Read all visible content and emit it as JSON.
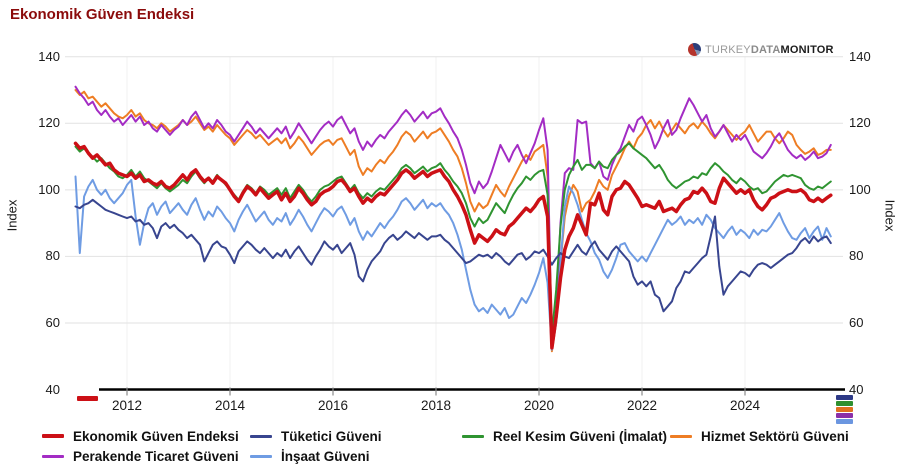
{
  "title": "Ekonomik Güven Endeksi",
  "logo": {
    "part1": "TURKEY",
    "part2": "DATA",
    "part3": "MONITOR"
  },
  "axes": {
    "y_label_left": "Index",
    "y_label_right": "Index",
    "y_ticks": [
      140,
      120,
      100,
      80,
      60,
      40
    ],
    "x_ticks": [
      "2012",
      "2014",
      "2016",
      "2018",
      "2020",
      "2022",
      "2024"
    ],
    "ylim": [
      40,
      140
    ]
  },
  "markers": {
    "bottom_left_color": "#cc1016",
    "bottom_right_colors": [
      "#2e3a87",
      "#2f8f2f",
      "#e07020",
      "#8b2fa8",
      "#6b96e0"
    ]
  },
  "chart_data": {
    "type": "line",
    "title": "Ekonomik Güven Endeksi",
    "ylabel": "Index",
    "ylim": [
      40,
      140
    ],
    "x_start": "2011-01",
    "x_end": "2025-09",
    "frequency": "monthly",
    "grid": true,
    "legend_position": "bottom",
    "series": [
      {
        "name": "Ekonomik Güven Endeksi",
        "color": "#cc1016",
        "width": 3.5,
        "values": [
          114,
          112.5,
          113,
          111,
          109.5,
          110.5,
          109,
          107.5,
          108,
          106,
          105,
          104.5,
          104,
          105,
          103.5,
          104.5,
          102.5,
          103,
          102,
          101.5,
          102.5,
          101,
          100.5,
          101.5,
          103,
          104.5,
          103,
          105,
          106,
          104,
          102.5,
          103.5,
          102,
          104,
          103,
          102,
          100,
          98,
          96.5,
          99,
          101,
          100,
          98.5,
          100.5,
          99,
          97.5,
          98.5,
          99.5,
          97,
          99,
          96.5,
          98,
          100.5,
          99,
          97,
          95.5,
          96.5,
          98.5,
          99.5,
          100,
          101,
          102.5,
          103,
          101.5,
          99.5,
          100.5,
          98,
          96,
          97.5,
          96.5,
          98,
          99,
          98.5,
          100,
          101.5,
          103,
          105,
          106,
          105,
          103.5,
          104.5,
          105.5,
          104,
          105,
          105.5,
          106,
          104,
          102.5,
          100,
          98,
          95.5,
          92.5,
          88,
          84,
          86.5,
          85.5,
          84.5,
          86,
          88,
          87,
          86.5,
          89,
          90,
          91.5,
          93,
          94.5,
          93.5,
          95,
          97,
          98,
          92,
          52.5,
          62,
          73.5,
          82,
          86,
          88.5,
          92.5,
          89.5,
          86.5,
          96,
          95.5,
          99,
          94,
          92.5,
          98,
          100,
          100.5,
          102.5,
          101.5,
          99.5,
          97.5,
          95,
          95.5,
          95,
          94.5,
          96.5,
          93.5,
          94,
          94.5,
          93.5,
          95.5,
          97,
          97.5,
          99.5,
          99,
          100.5,
          99,
          96.5,
          96,
          100.5,
          103.5,
          102,
          100.5,
          99,
          100,
          99,
          100,
          97,
          95,
          94,
          95.5,
          97.5,
          98,
          99,
          99.5,
          100,
          99.5,
          99.5,
          100,
          99,
          97,
          96.5,
          97.5,
          96.5,
          97.5,
          98.4
        ]
      },
      {
        "name": "Tüketici Güveni",
        "color": "#38458f",
        "width": 2,
        "values": [
          95,
          94.5,
          95.5,
          96,
          97,
          96,
          95,
          94,
          93.5,
          93,
          92.5,
          92,
          91.5,
          92,
          90.5,
          91,
          89.5,
          90,
          88.5,
          85.5,
          89,
          90,
          88.5,
          89.5,
          88,
          87,
          85.5,
          86.5,
          85,
          83.5,
          78.5,
          81,
          83.5,
          84.5,
          83,
          82.5,
          80.5,
          78,
          81.5,
          83,
          84.5,
          83.5,
          82,
          81,
          82.5,
          81,
          79.5,
          81,
          80,
          82,
          79.5,
          81.5,
          83,
          81,
          79,
          77.5,
          80,
          82,
          84.5,
          83,
          82,
          83.5,
          81,
          82.5,
          84,
          80.5,
          74,
          72.5,
          76,
          78.5,
          80,
          81.5,
          84,
          85.5,
          86.5,
          85,
          86,
          87.5,
          86.5,
          85.5,
          87,
          86,
          85,
          86,
          86,
          86.5,
          85,
          84,
          82.5,
          81,
          79.5,
          78,
          78.5,
          79.5,
          80.5,
          80,
          80.5,
          79.5,
          81,
          80,
          78.5,
          77.5,
          79,
          80.5,
          81,
          79,
          80,
          81.5,
          81,
          82,
          80,
          77.5,
          79.5,
          81,
          80,
          79.5,
          81.5,
          83.5,
          81.5,
          80.5,
          83,
          84.5,
          82,
          80.5,
          79,
          81.5,
          83,
          81.5,
          80,
          78.5,
          74,
          71.5,
          72.5,
          71,
          72.5,
          68.5,
          67.5,
          63.5,
          65,
          66.5,
          70.5,
          72.5,
          75.5,
          75,
          76.5,
          78,
          79.5,
          80.5,
          86,
          92,
          77,
          68.5,
          71,
          72.5,
          74,
          75.5,
          75,
          74,
          76,
          77.5,
          78,
          77.5,
          76.5,
          77.5,
          78.5,
          79.5,
          80.5,
          81,
          82.5,
          84.5,
          85.5,
          84,
          86,
          84.5,
          85.5,
          86,
          84
        ]
      },
      {
        "name": "Reel Kesim Güveni (İmalat)",
        "color": "#2f9431",
        "width": 2,
        "values": [
          113,
          111.5,
          112.5,
          111,
          110,
          108.5,
          109.5,
          108,
          106.5,
          105.5,
          104,
          103.5,
          104.5,
          106,
          104,
          105.5,
          103.5,
          102.5,
          101.5,
          100.5,
          102,
          100.5,
          99.5,
          100.5,
          101.5,
          103,
          102,
          104,
          105.5,
          103.5,
          102,
          103.5,
          102.5,
          104.5,
          103,
          101.5,
          100,
          98.5,
          97,
          99.5,
          101.5,
          100.5,
          99,
          101,
          100,
          98.5,
          99.5,
          100.5,
          98.5,
          100.5,
          97.5,
          99.5,
          101.5,
          100,
          98,
          96.5,
          98,
          100,
          101,
          101.5,
          102.5,
          103.5,
          104,
          102,
          100,
          101.5,
          99,
          97.5,
          99,
          98,
          99.5,
          100.5,
          100,
          101.5,
          103,
          104.5,
          106.5,
          107.5,
          106.5,
          105,
          106,
          107,
          105.5,
          106.5,
          107,
          108,
          106,
          104.5,
          102.5,
          101,
          99,
          96,
          91.5,
          89,
          91.5,
          90,
          91,
          93.5,
          96,
          94.5,
          93,
          96,
          98.5,
          100.5,
          102,
          104,
          103,
          104.5,
          105.5,
          106,
          98.5,
          56.5,
          70,
          89,
          100,
          104.5,
          107,
          109,
          106,
          107.5,
          107.5,
          106.5,
          108.5,
          107,
          106.5,
          109,
          110.5,
          111.5,
          113,
          114,
          112.5,
          111.5,
          110.5,
          109.5,
          108,
          106.5,
          107.5,
          105.5,
          103,
          101.5,
          100.5,
          101.5,
          102.5,
          103,
          104,
          103.5,
          105,
          104.5,
          106.5,
          108,
          107,
          105.5,
          104.5,
          103,
          102,
          103.5,
          102.5,
          101,
          100,
          100.5,
          99,
          99.5,
          101,
          102.5,
          103.5,
          104.5,
          104,
          104.5,
          104,
          103.5,
          101.5,
          100.5,
          100,
          101,
          100.5,
          101.5,
          102.5
        ]
      },
      {
        "name": "Hizmet Sektörü Güveni",
        "color": "#ee7d24",
        "width": 2,
        "values": [
          130,
          128.5,
          129.5,
          127.5,
          128,
          126.5,
          125,
          126,
          124.5,
          123,
          122,
          121.5,
          122.5,
          124,
          122,
          123,
          121,
          120,
          119.5,
          118.5,
          120,
          119,
          117.5,
          118.5,
          119.5,
          121,
          119.5,
          120.5,
          122,
          120,
          118,
          119,
          117.5,
          119.5,
          118,
          116.5,
          115.5,
          113.5,
          115,
          116.5,
          118,
          117,
          115.5,
          116.5,
          115,
          113.5,
          114.5,
          115.5,
          114,
          115.5,
          112.5,
          114,
          116,
          114.5,
          112.5,
          110.5,
          112,
          113.5,
          114.5,
          115,
          113.5,
          115,
          115.5,
          113,
          110.5,
          112,
          107,
          104.5,
          106.5,
          105.5,
          107.5,
          109,
          108,
          110,
          111.5,
          113.5,
          116,
          117.5,
          116.5,
          114.5,
          116,
          117.5,
          115.5,
          117,
          117.5,
          118.5,
          116.5,
          114.5,
          112,
          110,
          106.5,
          102,
          96.5,
          93.5,
          96,
          94.5,
          95.5,
          98.5,
          101.5,
          99.5,
          98,
          101,
          103.5,
          106,
          108.5,
          110.5,
          109,
          111.5,
          112.5,
          113.5,
          104,
          51.5,
          60,
          78,
          92,
          98,
          101.5,
          99.5,
          93.5,
          96,
          97,
          99.5,
          103,
          101,
          100,
          104.5,
          107,
          109.5,
          112.5,
          114.5,
          112.5,
          115.5,
          117,
          119.5,
          121,
          118.5,
          120.5,
          118,
          116,
          118,
          120,
          118.5,
          117,
          119,
          120,
          118.5,
          120.5,
          119,
          117,
          115.5,
          117.5,
          119.5,
          118,
          116.5,
          115,
          116.5,
          117.5,
          119.5,
          117,
          114.5,
          116,
          117.5,
          117.5,
          115.5,
          114,
          115.5,
          117.5,
          116.5,
          113.5,
          112,
          110.8,
          111.5,
          112.5,
          110.5,
          111,
          112,
          112
        ]
      },
      {
        "name": "Perakende Ticaret Güveni",
        "color": "#a32cc4",
        "width": 2,
        "values": [
          131,
          129,
          127.5,
          125.5,
          126.5,
          124,
          122.5,
          124,
          122,
          120.5,
          121.5,
          119.5,
          121,
          122.5,
          120.5,
          122,
          119.5,
          120.5,
          118.5,
          117.5,
          119.5,
          118,
          116.5,
          118,
          119,
          121,
          119.5,
          122,
          123.5,
          121,
          118.5,
          120,
          118.5,
          121,
          119.5,
          117.5,
          116.5,
          114.5,
          116.5,
          118.5,
          120.5,
          119,
          117,
          118.5,
          117,
          115.5,
          117,
          118.5,
          117,
          119,
          115.5,
          117.5,
          120,
          118,
          116,
          114,
          116,
          118,
          119.5,
          120.5,
          119,
          121,
          122,
          119.5,
          117,
          118.5,
          114.5,
          112,
          114.5,
          113,
          115,
          116.5,
          115.5,
          117.5,
          119,
          120.5,
          122.5,
          124,
          122.5,
          120.5,
          122,
          123.5,
          121.5,
          123,
          123.5,
          124.5,
          122,
          120,
          117.5,
          115.5,
          112,
          107.5,
          102,
          99,
          102.5,
          100.5,
          102,
          105.5,
          109.5,
          113.5,
          111,
          108.5,
          111.5,
          113.5,
          110.5,
          108,
          111,
          114,
          118,
          121.5,
          112,
          52.5,
          63,
          90,
          105,
          106.5,
          106,
          121,
          120,
          120.5,
          108,
          106.5,
          108.5,
          104,
          103,
          107.5,
          110.5,
          112.5,
          116,
          119.5,
          117.5,
          121,
          122,
          119.5,
          116.5,
          112.5,
          115,
          118.5,
          121,
          116.5,
          118,
          121.5,
          124.5,
          127.5,
          125.5,
          123,
          120.5,
          122.5,
          118.5,
          116,
          117.5,
          119.5,
          117,
          114.5,
          116.5,
          115,
          116.5,
          114,
          111.5,
          110.5,
          109.5,
          111,
          113,
          115.5,
          117,
          114.5,
          112,
          110.5,
          109.5,
          110.5,
          109,
          110,
          111.5,
          109.5,
          110,
          111,
          113.5
        ]
      },
      {
        "name": "İnşaat Güveni",
        "color": "#6f9ce3",
        "width": 2,
        "values": [
          104,
          81,
          98,
          101,
          103,
          100,
          98.5,
          100,
          97.5,
          96,
          97.5,
          99,
          101.5,
          103,
          92,
          83.5,
          90,
          94.5,
          96,
          92.5,
          95,
          96.5,
          93,
          94.5,
          96,
          94,
          92.5,
          95.5,
          97.5,
          94,
          91,
          93.5,
          92,
          95,
          93.5,
          91.5,
          90,
          87.5,
          91,
          93.5,
          95.5,
          93,
          90.5,
          92,
          93.5,
          91,
          89.5,
          91.5,
          90.5,
          93,
          89.5,
          91.5,
          94,
          92,
          89.5,
          87.5,
          90,
          92.5,
          94.5,
          93.5,
          92,
          94,
          95,
          92.5,
          89.5,
          91.5,
          87.5,
          85,
          87.5,
          86,
          88,
          90,
          88.5,
          90.5,
          92,
          94,
          96.5,
          97.5,
          96,
          94,
          95.5,
          97,
          94.5,
          96,
          95,
          96,
          94,
          92.5,
          90,
          86.5,
          82,
          76,
          70,
          65.5,
          63.5,
          64.5,
          63,
          65.5,
          64,
          62.5,
          64.5,
          61.5,
          62.5,
          65,
          67.5,
          66,
          68.5,
          71.5,
          75,
          79.5,
          72,
          52,
          60,
          78,
          95,
          101,
          99,
          95.5,
          91,
          87,
          84.5,
          81,
          79,
          75.5,
          73.5,
          76,
          79.5,
          83.5,
          84,
          81.5,
          80,
          78.5,
          80,
          78.5,
          81,
          83.5,
          86,
          88.5,
          91,
          89.5,
          90.5,
          92,
          89.5,
          91,
          90,
          91.5,
          89.5,
          92.5,
          91,
          88.5,
          87,
          85.5,
          87.5,
          89,
          86.5,
          88,
          87,
          85.5,
          88,
          86.5,
          88,
          87.5,
          89,
          91,
          93,
          90,
          87.5,
          85.5,
          85,
          87,
          88.5,
          85.5,
          87.5,
          89,
          85,
          88.5,
          86
        ]
      }
    ]
  }
}
